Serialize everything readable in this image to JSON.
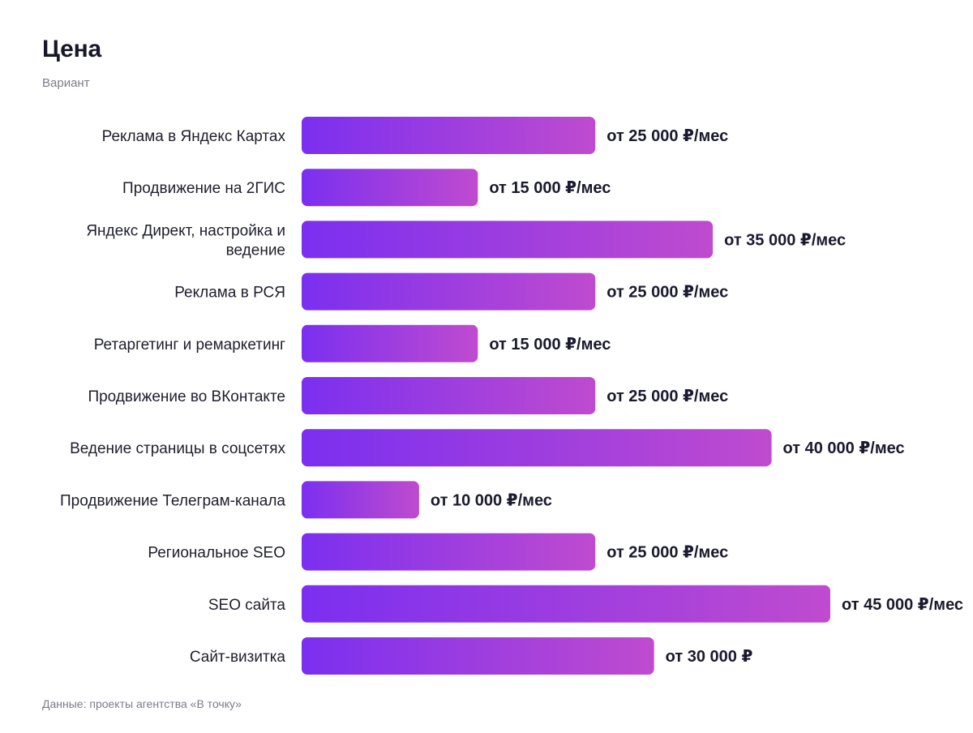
{
  "title": "Цена",
  "subtitle": "Вариант",
  "footer": "Данные: проекты агентства «В точку»",
  "colors": {
    "bar_start": "#7b2ff0",
    "bar_end": "#bf4bcf",
    "text": "#1a1a2e",
    "muted": "#7c7c8a"
  },
  "chart_data": {
    "type": "bar",
    "orientation": "horizontal",
    "title": "Цена",
    "subtitle": "Вариант",
    "categories": [
      "Реклама в Яндекс Картах",
      "Продвижение на 2ГИС",
      "Яндекс Директ, настройка и ведение",
      "Реклама в РСЯ",
      "Ретаргетинг и ремаркетинг",
      "Продвижение во ВКонтакте",
      "Ведение страницы в соцсетях",
      "Продвижение Телеграм-канала",
      "Региональное SEO",
      "SEO сайта",
      "Сайт-визитка"
    ],
    "values": [
      25000,
      15000,
      35000,
      25000,
      15000,
      25000,
      40000,
      10000,
      25000,
      45000,
      30000
    ],
    "value_labels": [
      "от 25 000 ₽/мес",
      "от 15 000 ₽/мес",
      "от 35 000 ₽/мес",
      "от 25 000 ₽/мес",
      "от 15 000 ₽/мес",
      "от 25 000 ₽/мес",
      "от 40 000 ₽/мес",
      "от 10 000 ₽/мес",
      "от 25 000 ₽/мес",
      "от 45 000 ₽/мес",
      "от 30 000 ₽"
    ],
    "xlim": [
      0,
      45000
    ],
    "grid": false,
    "legend": "none"
  }
}
